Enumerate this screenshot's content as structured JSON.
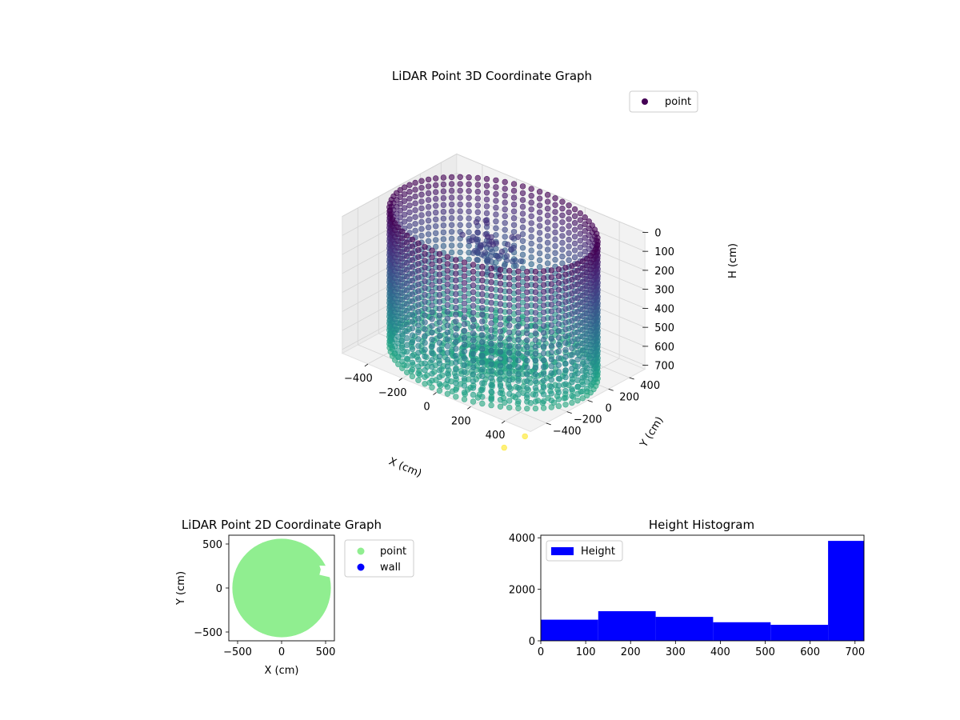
{
  "chart_data": [
    {
      "type": "scatter",
      "title": "LiDAR Point 3D Coordinate Graph",
      "xlabel": "X (cm)",
      "ylabel": "Y (cm)",
      "zlabel": "H (cm)",
      "xlim": [
        -550,
        550
      ],
      "ylim": [
        -550,
        550
      ],
      "zlim": [
        0,
        720
      ],
      "x_ticks": [
        -400,
        -200,
        0,
        200,
        400
      ],
      "y_ticks": [
        -400,
        -200,
        0,
        200,
        400
      ],
      "z_ticks": [
        0,
        100,
        200,
        300,
        400,
        500,
        600,
        700
      ],
      "z_inverted": true,
      "legend": {
        "entries": [
          "point"
        ],
        "placement": "top-right"
      },
      "colormap": "viridis",
      "series": [
        {
          "name": "point",
          "structure": "cylindrical wall of points, radius about 550 cm, heights 0 to 720 cm, plus a planar floor at about 720 cm, a cluster of points near 150-300 cm and two outlier points",
          "sample_points": [
            {
              "x": 550,
              "y": 0,
              "h": 720
            },
            {
              "x": 0,
              "y": 550,
              "h": 0
            },
            {
              "x": -550,
              "y": 0,
              "h": 360
            },
            {
              "x": 0,
              "y": -550,
              "h": 720
            },
            {
              "x": -150,
              "y": 200,
              "h": 200
            },
            {
              "x": 560,
              "y": -620,
              "h": 720
            },
            {
              "x": 560,
              "y": -820,
              "h": 720
            }
          ]
        }
      ]
    },
    {
      "type": "scatter",
      "title": "LiDAR Point 2D Coordinate Graph",
      "xlabel": "X (cm)",
      "ylabel": "Y (cm)",
      "xlim": [
        -600,
        600
      ],
      "ylim": [
        -600,
        600
      ],
      "x_ticks": [
        -500,
        0,
        500
      ],
      "y_ticks": [
        -500,
        0,
        500
      ],
      "legend": {
        "entries": [
          "point",
          "wall"
        ],
        "placement": "outside-right"
      },
      "series": [
        {
          "name": "point",
          "color": "#90ee90"
        },
        {
          "name": "wall",
          "color": "#0000ff"
        }
      ]
    },
    {
      "type": "bar",
      "title": "Height Histogram",
      "xlim": [
        0,
        720
      ],
      "ylim": [
        0,
        4100
      ],
      "x_ticks": [
        0,
        100,
        200,
        300,
        400,
        500,
        600,
        700
      ],
      "y_ticks": [
        0,
        2000,
        4000
      ],
      "bin_edges": [
        0,
        128,
        256,
        384,
        512,
        640,
        720
      ],
      "series": [
        {
          "name": "Height",
          "color": "#0000ff",
          "values": [
            820,
            1150,
            930,
            720,
            620,
            3880
          ]
        }
      ],
      "legend": {
        "entries": [
          "Height"
        ],
        "placement": "top-left"
      }
    }
  ]
}
